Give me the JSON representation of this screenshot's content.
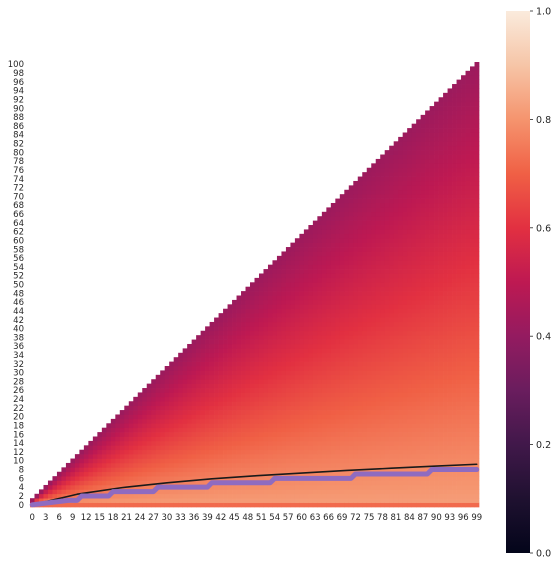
{
  "chart_data": {
    "type": "heatmap",
    "shape": "lower-triangular",
    "x_range": [
      0,
      99
    ],
    "y_range": [
      0,
      100
    ],
    "x_tick_step": 3,
    "y_tick_step": 2,
    "y_axis_inverted": true,
    "colormap": "rocket",
    "colorbar": {
      "range": [
        0,
        1
      ],
      "ticks": [
        0.0,
        0.2,
        0.4,
        0.6,
        0.8,
        1.0
      ],
      "tick_labels": [
        "0.0",
        "0.2",
        "0.4",
        "0.6",
        "0.8",
        "1.0"
      ],
      "position": "right"
    },
    "value_model": {
      "description": "cell (x,y) filled for y <= x+1; value decreases with y / (x+1)",
      "value_at_bottom": 0.82,
      "value_at_diagonal": 0.42,
      "row_zero_value": 0.72
    },
    "overlay_lines": [
      {
        "style": "smooth",
        "color": "#1a1a1a",
        "points": [
          [
            0,
            0
          ],
          [
            10,
            2.4
          ],
          [
            20,
            3.9
          ],
          [
            30,
            5.0
          ],
          [
            40,
            5.9
          ],
          [
            50,
            6.6
          ],
          [
            60,
            7.2
          ],
          [
            70,
            7.8
          ],
          [
            80,
            8.3
          ],
          [
            90,
            8.8
          ],
          [
            99,
            9.2
          ]
        ]
      },
      {
        "style": "step",
        "color": "#8f6bc0",
        "points": [
          [
            0,
            0
          ],
          [
            8,
            1
          ],
          [
            10,
            1
          ],
          [
            11,
            2
          ],
          [
            17,
            2
          ],
          [
            18,
            3
          ],
          [
            27,
            3
          ],
          [
            28,
            4
          ],
          [
            39,
            4
          ],
          [
            40,
            5
          ],
          [
            53,
            5
          ],
          [
            54,
            6
          ],
          [
            71,
            6
          ],
          [
            72,
            7
          ],
          [
            88,
            7
          ],
          [
            89,
            8
          ],
          [
            99,
            8
          ]
        ]
      }
    ],
    "grid": false
  }
}
